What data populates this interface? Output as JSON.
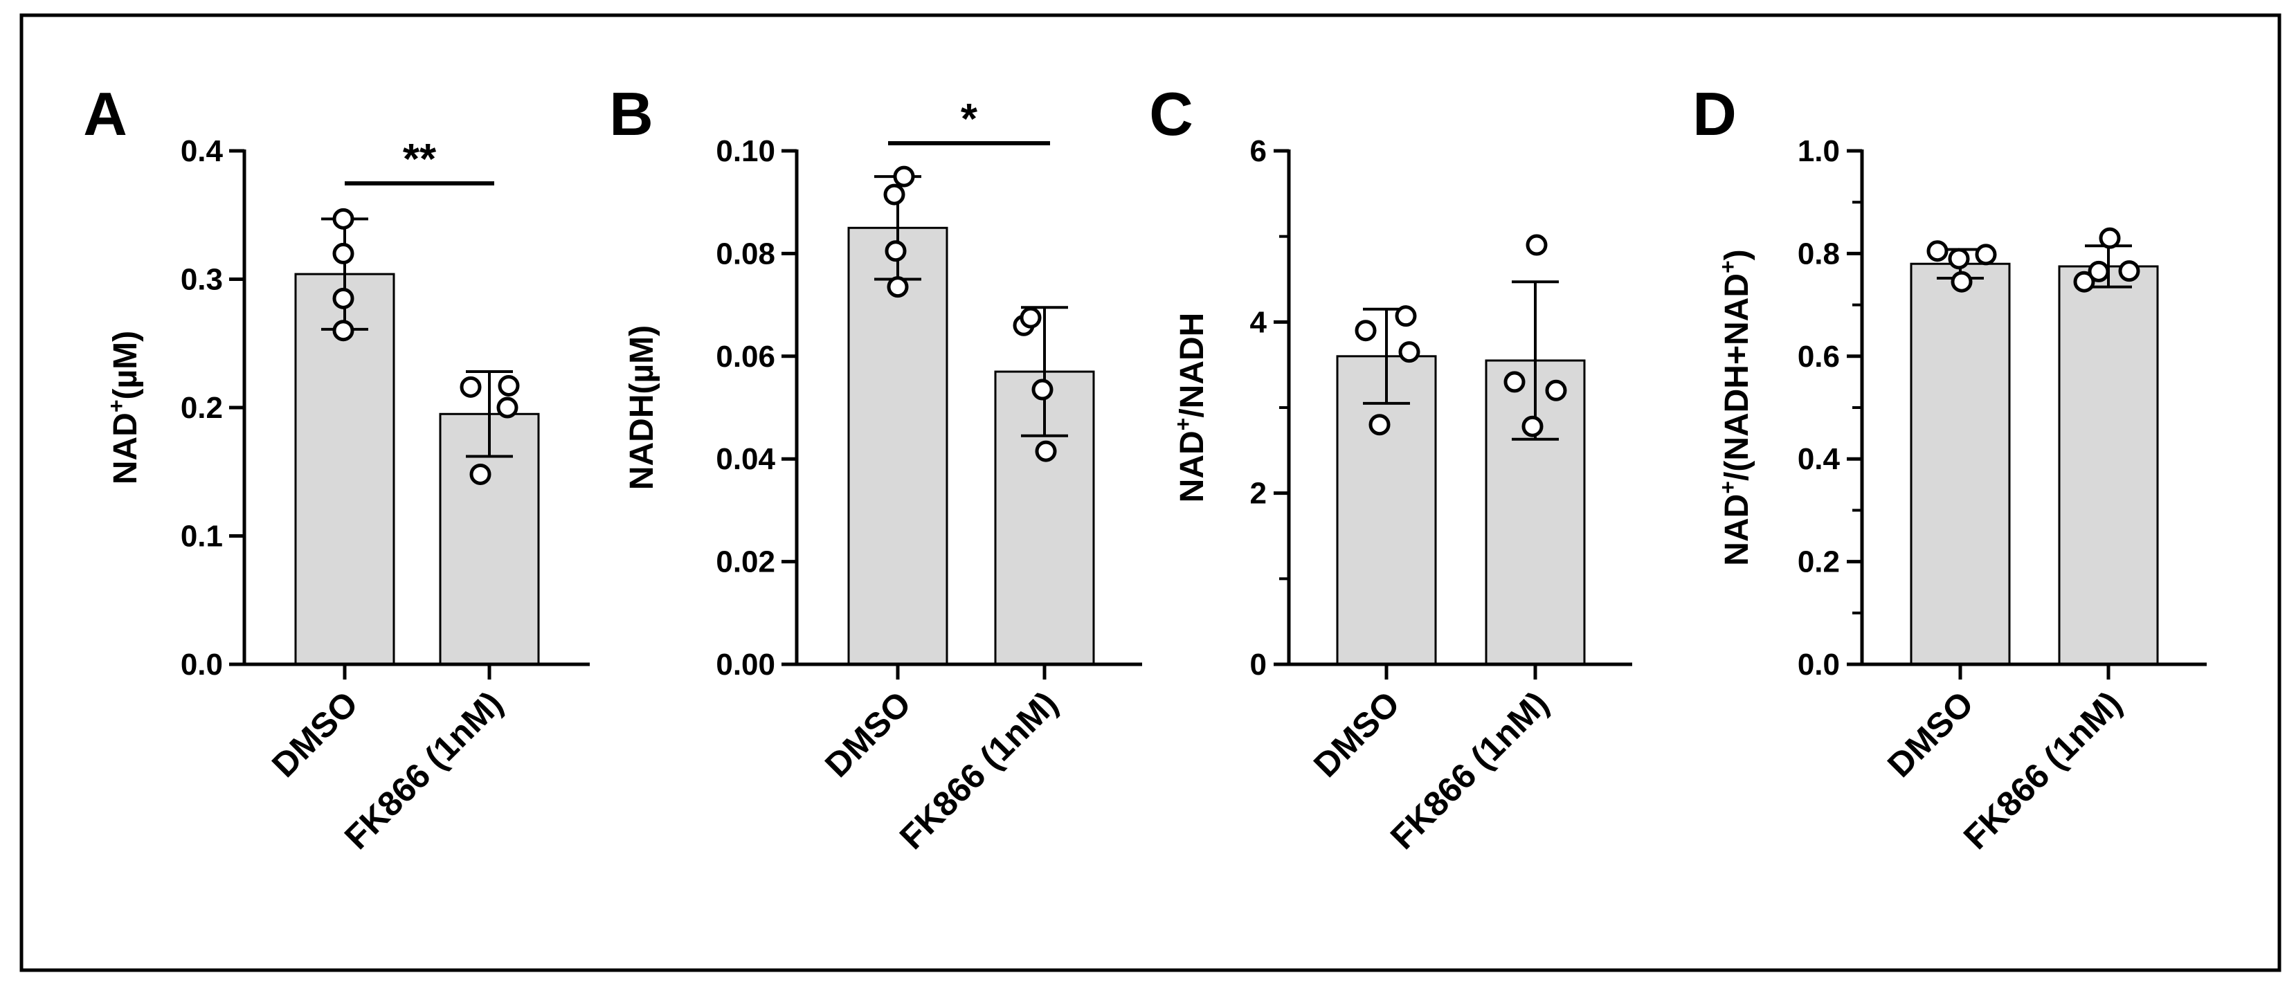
{
  "figure": {
    "bar_fill": "#d9d9d9",
    "ink": "#000000",
    "background": "#ffffff"
  },
  "chart_data": [
    {
      "type": "bar",
      "panel_letter": "A",
      "ylabel_main": "NAD",
      "ylabel_sup": "+",
      "ylabel_rest": "(µM)",
      "categories": [
        "DMSO",
        "FK866 (1nM)"
      ],
      "values": [
        0.304,
        0.195
      ],
      "errors": [
        0.043,
        0.033
      ],
      "points": [
        [
          0.347,
          0.32,
          0.285,
          0.26
        ],
        [
          0.216,
          0.217,
          0.2,
          0.148
        ]
      ],
      "ylim": [
        0,
        0.4
      ],
      "yticks": [
        0.0,
        0.1,
        0.2,
        0.3,
        0.4
      ],
      "ytick_labels": [
        "0.0",
        "0.1",
        "0.2",
        "0.3",
        "0.4"
      ],
      "minor_ticks": false,
      "significance": "**"
    },
    {
      "type": "bar",
      "panel_letter": "B",
      "ylabel_main": "NADH(µM)",
      "ylabel_sup": "",
      "ylabel_rest": "",
      "categories": [
        "DMSO",
        "FK866 (1nM)"
      ],
      "values": [
        0.085,
        0.057
      ],
      "errors": [
        0.01,
        0.0125
      ],
      "points": [
        [
          0.095,
          0.0915,
          0.0805,
          0.0735
        ],
        [
          0.066,
          0.0675,
          0.0535,
          0.0415
        ]
      ],
      "ylim": [
        0,
        0.1
      ],
      "yticks": [
        0.0,
        0.02,
        0.04,
        0.06,
        0.08,
        0.1
      ],
      "ytick_labels": [
        "0.00",
        "0.02",
        "0.04",
        "0.06",
        "0.08",
        "0.10"
      ],
      "minor_ticks": false,
      "significance": "*"
    },
    {
      "type": "bar",
      "panel_letter": "C",
      "ylabel_main": "NAD",
      "ylabel_sup": "+",
      "ylabel_rest": "/NADH",
      "categories": [
        "DMSO",
        "FK866 (1nM)"
      ],
      "values": [
        3.6,
        3.55
      ],
      "errors": [
        0.55,
        0.92
      ],
      "points": [
        [
          3.9,
          4.07,
          3.65,
          2.8
        ],
        [
          4.9,
          3.3,
          3.2,
          2.78
        ]
      ],
      "ylim": [
        0,
        6
      ],
      "yticks": [
        0,
        2,
        4,
        6
      ],
      "ytick_labels": [
        "0",
        "2",
        "4",
        "6"
      ],
      "minor_ticks": true,
      "minor_step": 1,
      "significance": ""
    },
    {
      "type": "bar",
      "panel_letter": "D",
      "ylabel_main": "NAD",
      "ylabel_sup": "+",
      "ylabel_rest": "/(NADH+NAD",
      "ylabel_sup2": "+",
      "ylabel_tail": ")",
      "categories": [
        "DMSO",
        "FK866 (1nM)"
      ],
      "values": [
        0.78,
        0.775
      ],
      "errors": [
        0.028,
        0.04
      ],
      "points": [
        [
          0.805,
          0.79,
          0.798,
          0.745
        ],
        [
          0.745,
          0.765,
          0.83,
          0.766
        ]
      ],
      "ylim": [
        0,
        1.0
      ],
      "yticks": [
        0.0,
        0.2,
        0.4,
        0.6,
        0.8,
        1.0
      ],
      "ytick_labels": [
        "0.0",
        "0.2",
        "0.4",
        "0.6",
        "0.8",
        "1.0"
      ],
      "minor_ticks": true,
      "minor_step": 0.1,
      "significance": ""
    }
  ]
}
